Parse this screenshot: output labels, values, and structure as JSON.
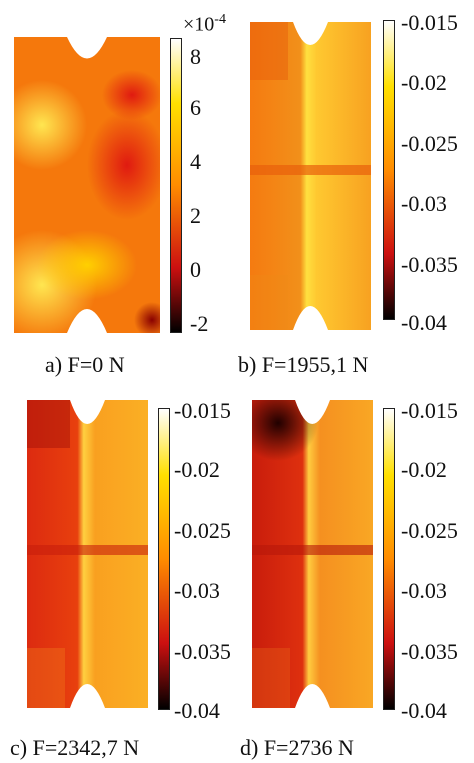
{
  "panels": [
    {
      "caption": "a) F=0 N",
      "colorbar": {
        "ticks": [
          "8",
          "6",
          "4",
          "2",
          "0",
          "-2"
        ],
        "exponent": "×10",
        "exponent_power": "-4"
      }
    },
    {
      "caption": "b) F=1955,1 N",
      "colorbar": {
        "ticks": [
          "-0.015",
          "-0.02",
          "-0.025",
          "-0.03",
          "-0.035",
          "-0.04"
        ]
      }
    },
    {
      "caption": "c) F=2342,7 N",
      "colorbar": {
        "ticks": [
          "-0.015",
          "-0.02",
          "-0.025",
          "-0.03",
          "-0.035",
          "-0.04"
        ]
      }
    },
    {
      "caption": "d) F=2736 N",
      "colorbar": {
        "ticks": [
          "-0.015",
          "-0.02",
          "-0.025",
          "-0.03",
          "-0.035",
          "-0.04"
        ]
      }
    }
  ],
  "colormap": {
    "low": "#000000",
    "mid_low": "#cc1010",
    "mid": "#ff8c00",
    "mid_high": "#ffe000",
    "high": "#ffffff"
  }
}
